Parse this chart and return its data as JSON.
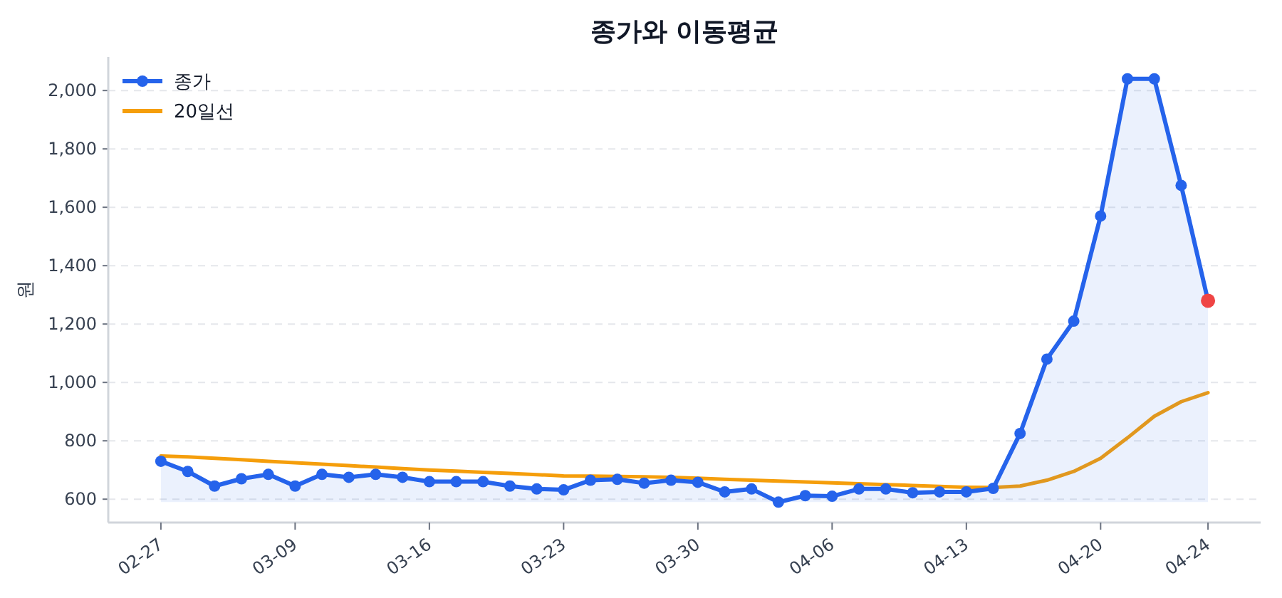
{
  "chart_data": {
    "type": "line",
    "title": "종가와 이동평균",
    "ylabel": "원",
    "categories": [
      "02-27",
      null,
      null,
      null,
      null,
      "03-09",
      null,
      null,
      null,
      null,
      "03-16",
      null,
      null,
      null,
      null,
      "03-23",
      null,
      null,
      null,
      null,
      "03-30",
      null,
      null,
      null,
      null,
      "04-06",
      null,
      null,
      null,
      null,
      "04-13",
      null,
      null,
      null,
      null,
      "04-20",
      null,
      null,
      null,
      "04-24"
    ],
    "series": [
      {
        "name": "종가",
        "type": "area",
        "color": "#2563eb",
        "marker": "circle",
        "colors": [
          "#2563eb",
          "#2563eb",
          "#2563eb",
          "#2563eb",
          "#2563eb",
          "#2563eb",
          "#2563eb",
          "#2563eb",
          "#2563eb",
          "#2563eb",
          "#2563eb",
          "#2563eb",
          "#2563eb",
          "#2563eb",
          "#2563eb",
          "#2563eb",
          "#2563eb",
          "#2563eb",
          "#2563eb",
          "#2563eb",
          "#2563eb",
          "#2563eb",
          "#2563eb",
          "#2563eb",
          "#2563eb",
          "#2563eb",
          "#2563eb",
          "#2563eb",
          "#2563eb",
          "#2563eb",
          "#2563eb",
          "#2563eb",
          "#2563eb",
          "#2563eb",
          "#2563eb",
          "#2563eb",
          "#2563eb",
          "#2563eb",
          "#2563eb",
          "#ef4444"
        ],
        "values": [
          730,
          695,
          645,
          670,
          685,
          645,
          685,
          675,
          685,
          675,
          660,
          660,
          660,
          645,
          635,
          632,
          665,
          668,
          655,
          665,
          658,
          625,
          635,
          590,
          612,
          610,
          635,
          635,
          622,
          625,
          625,
          637,
          825,
          1080,
          1210,
          1570,
          2040,
          2040,
          1675,
          1280
        ]
      },
      {
        "name": "20일선",
        "type": "line",
        "color": "#f59e0b",
        "values": [
          748,
          745,
          740,
          735,
          730,
          725,
          720,
          715,
          710,
          705,
          700,
          696,
          692,
          688,
          684,
          680,
          679,
          678,
          677,
          675,
          672,
          668,
          665,
          662,
          659,
          656,
          653,
          650,
          647,
          644,
          641,
          640,
          645,
          665,
          695,
          740,
          810,
          884,
          934,
          965
        ]
      }
    ],
    "ylim": [
      520,
      2115
    ],
    "yticks": [
      {
        "value": 600,
        "label": "600"
      },
      {
        "value": 800,
        "label": "800"
      },
      {
        "value": 1000,
        "label": "1,000"
      },
      {
        "value": 1200,
        "label": "1,200"
      },
      {
        "value": 1400,
        "label": "1,400"
      },
      {
        "value": 1600,
        "label": "1,600"
      },
      {
        "value": 1800,
        "label": "1,800"
      },
      {
        "value": 2000,
        "label": "2,000"
      }
    ],
    "grid": "y",
    "legend": "top left"
  }
}
